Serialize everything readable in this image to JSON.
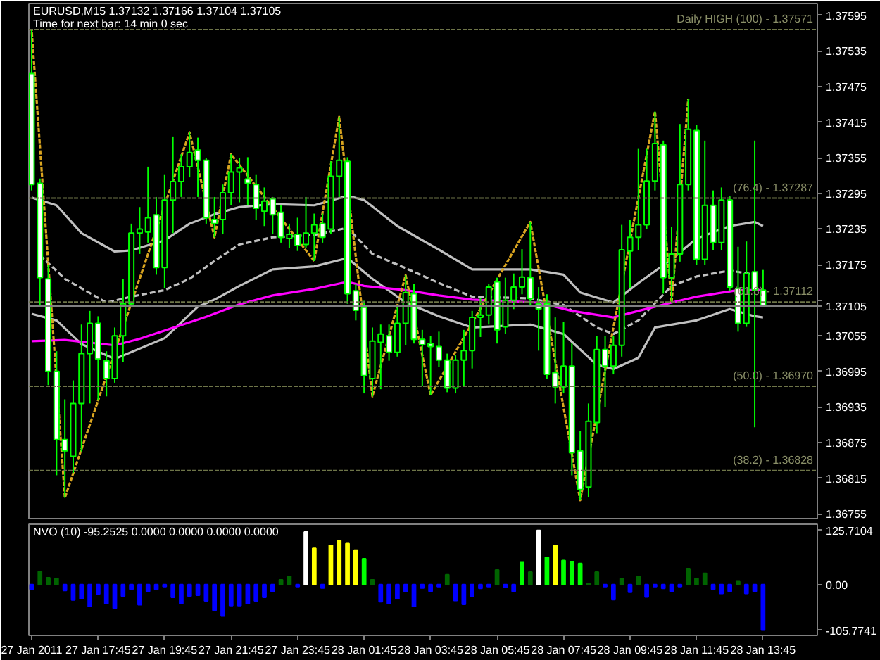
{
  "chart_data": [
    {
      "type": "candlestick",
      "title": "EURUSD,M15 1.37132 1.37166 1.37104 1.37105",
      "subtitle": "Time for next bar: 14 min 0 sec",
      "color": "#00ff00",
      "x": [
        "2011-01-27T15:45",
        "2011-01-27T16:00",
        "2011-01-27T16:15",
        "2011-01-27T16:30",
        "2011-01-27T16:45",
        "2011-01-27T17:00",
        "2011-01-27T17:15",
        "2011-01-27T17:30",
        "2011-01-27T17:45",
        "2011-01-27T18:00",
        "2011-01-27T18:15",
        "2011-01-27T18:30",
        "2011-01-27T18:45",
        "2011-01-27T19:00",
        "2011-01-27T19:15",
        "2011-01-27T19:30",
        "2011-01-27T19:45",
        "2011-01-27T20:00",
        "2011-01-27T20:15",
        "2011-01-27T20:30",
        "2011-01-27T20:45",
        "2011-01-27T21:00",
        "2011-01-27T21:15",
        "2011-01-27T21:30",
        "2011-01-27T21:45",
        "2011-01-27T22:00",
        "2011-01-27T22:15",
        "2011-01-27T22:30",
        "2011-01-27T22:45",
        "2011-01-27T23:00",
        "2011-01-27T23:15",
        "2011-01-27T23:30",
        "2011-01-27T23:45",
        "2011-01-28T00:00",
        "2011-01-28T00:15",
        "2011-01-28T00:30",
        "2011-01-28T00:45",
        "2011-01-28T01:00",
        "2011-01-28T01:15",
        "2011-01-28T01:30",
        "2011-01-28T01:45",
        "2011-01-28T02:00",
        "2011-01-28T02:15",
        "2011-01-28T02:30",
        "2011-01-28T02:45",
        "2011-01-28T03:00",
        "2011-01-28T03:15",
        "2011-01-28T03:30",
        "2011-01-28T03:45",
        "2011-01-28T04:00",
        "2011-01-28T04:15",
        "2011-01-28T04:30",
        "2011-01-28T04:45",
        "2011-01-28T05:00",
        "2011-01-28T05:15",
        "2011-01-28T05:30",
        "2011-01-28T05:45",
        "2011-01-28T06:00",
        "2011-01-28T06:15",
        "2011-01-28T06:30",
        "2011-01-28T06:45",
        "2011-01-28T07:00",
        "2011-01-28T07:15",
        "2011-01-28T07:30",
        "2011-01-28T07:45",
        "2011-01-28T08:00",
        "2011-01-28T08:15",
        "2011-01-28T08:30",
        "2011-01-28T08:45",
        "2011-01-28T09:00",
        "2011-01-28T09:15",
        "2011-01-28T09:30",
        "2011-01-28T09:45",
        "2011-01-28T10:00",
        "2011-01-28T10:15",
        "2011-01-28T10:30",
        "2011-01-28T10:45",
        "2011-01-28T11:00",
        "2011-01-28T11:15",
        "2011-01-28T11:30",
        "2011-01-28T11:45",
        "2011-01-28T12:00",
        "2011-01-28T12:15",
        "2011-01-28T12:30",
        "2011-01-28T12:45",
        "2011-01-28T13:00",
        "2011-01-28T13:15",
        "2011-01-28T13:30",
        "2011-01-28T13:45"
      ],
      "ohlc": [
        [
          1.37497,
          1.37571,
          1.373,
          1.3731
        ],
        [
          1.37312,
          1.3732,
          1.37104,
          1.37153
        ],
        [
          1.37151,
          1.37175,
          1.36972,
          1.36995
        ],
        [
          1.36995,
          1.37029,
          1.3682,
          1.3688
        ],
        [
          1.3688,
          1.36948,
          1.36782,
          1.36861
        ],
        [
          1.36852,
          1.3698,
          1.36824,
          1.36941
        ],
        [
          1.36941,
          1.37074,
          1.3686,
          1.37025
        ],
        [
          1.37025,
          1.37097,
          1.36941,
          1.37076
        ],
        [
          1.37076,
          1.37088,
          1.36946,
          1.37016
        ],
        [
          1.37013,
          1.37029,
          1.36953,
          1.36983
        ],
        [
          1.36983,
          1.37069,
          1.36976,
          1.37055
        ],
        [
          1.37055,
          1.37151,
          1.37011,
          1.37109
        ],
        [
          1.37109,
          1.37244,
          1.37107,
          1.37228
        ],
        [
          1.37228,
          1.37272,
          1.37193,
          1.37235
        ],
        [
          1.3723,
          1.3734,
          1.37212,
          1.37254
        ],
        [
          1.37259,
          1.37289,
          1.37158,
          1.3717
        ],
        [
          1.3717,
          1.37326,
          1.37135,
          1.37284
        ],
        [
          1.37284,
          1.37391,
          1.37228,
          1.37315
        ],
        [
          1.37315,
          1.37361,
          1.37289,
          1.3734
        ],
        [
          1.3734,
          1.37398,
          1.37322,
          1.37364
        ],
        [
          1.37368,
          1.37389,
          1.37289,
          1.37351
        ],
        [
          1.37351,
          1.37355,
          1.37244,
          1.37254
        ],
        [
          1.37251,
          1.37289,
          1.37221,
          1.37244
        ],
        [
          1.37251,
          1.3731,
          1.37226,
          1.37296
        ],
        [
          1.37296,
          1.37361,
          1.37275,
          1.37331
        ],
        [
          1.37331,
          1.37355,
          1.3728,
          1.37338
        ],
        [
          1.37319,
          1.37356,
          1.37275,
          1.37312
        ],
        [
          1.3731,
          1.37326,
          1.37251,
          1.3727
        ],
        [
          1.37265,
          1.37305,
          1.3724,
          1.37282
        ],
        [
          1.37286,
          1.37289,
          1.37226,
          1.37259
        ],
        [
          1.37263,
          1.37275,
          1.37212,
          1.37221
        ],
        [
          1.37219,
          1.37244,
          1.37203,
          1.37226
        ],
        [
          1.37226,
          1.37254,
          1.37198,
          1.37207
        ],
        [
          1.37209,
          1.37289,
          1.37203,
          1.37228
        ],
        [
          1.37228,
          1.37261,
          1.37181,
          1.37242
        ],
        [
          1.37244,
          1.37261,
          1.37212,
          1.37221
        ],
        [
          1.37235,
          1.37349,
          1.37226,
          1.37324
        ],
        [
          1.37324,
          1.37424,
          1.37289,
          1.37351
        ],
        [
          1.37349,
          1.37356,
          1.37109,
          1.37126
        ],
        [
          1.37131,
          1.37143,
          1.37081,
          1.37098
        ],
        [
          1.37103,
          1.37114,
          1.36958,
          1.36988
        ],
        [
          1.36983,
          1.37069,
          1.36953,
          1.37046
        ],
        [
          1.37044,
          1.37074,
          1.36965,
          1.37058
        ],
        [
          1.37055,
          1.37074,
          1.37013,
          1.37027
        ],
        [
          1.37027,
          1.37107,
          1.3702,
          1.37076
        ],
        [
          1.37076,
          1.37157,
          1.37039,
          1.37128
        ],
        [
          1.37126,
          1.37143,
          1.37042,
          1.37049
        ],
        [
          1.37049,
          1.37065,
          1.36971,
          1.3704
        ],
        [
          1.37042,
          1.37055,
          1.36955,
          1.37037
        ],
        [
          1.37037,
          1.37062,
          1.37002,
          1.37014
        ],
        [
          1.37014,
          1.37025,
          1.3696,
          1.36967
        ],
        [
          1.36967,
          1.37023,
          1.36958,
          1.37014
        ],
        [
          1.37014,
          1.37065,
          1.36971,
          1.3703
        ],
        [
          1.3703,
          1.37097,
          1.37,
          1.37086
        ],
        [
          1.37086,
          1.37118,
          1.37053,
          1.3709
        ],
        [
          1.3709,
          1.37143,
          1.37074,
          1.37137
        ],
        [
          1.37146,
          1.37153,
          1.37042,
          1.37065
        ],
        [
          1.3707,
          1.37153,
          1.37058,
          1.37115
        ],
        [
          1.37115,
          1.3716,
          1.371,
          1.37137
        ],
        [
          1.37137,
          1.37201,
          1.37125,
          1.37154
        ],
        [
          1.37153,
          1.37247,
          1.37104,
          1.37118
        ],
        [
          1.37109,
          1.37137,
          1.3703,
          1.371
        ],
        [
          1.37109,
          1.37125,
          1.36983,
          1.3699
        ],
        [
          1.36993,
          1.37086,
          1.36941,
          1.36969
        ],
        [
          1.36969,
          1.37079,
          1.36958,
          1.37004
        ],
        [
          1.37004,
          1.37042,
          1.3682,
          1.36858
        ],
        [
          1.36861,
          1.36895,
          1.36778,
          1.36796
        ],
        [
          1.368,
          1.36941,
          1.36783,
          1.36911
        ],
        [
          1.36909,
          1.37055,
          1.3689,
          1.37032
        ],
        [
          1.37032,
          1.37055,
          1.36935,
          1.37004
        ],
        [
          1.37004,
          1.37055,
          1.3699,
          1.37039
        ],
        [
          1.37039,
          1.37242,
          1.3702,
          1.372
        ],
        [
          1.37198,
          1.37251,
          1.37135,
          1.37221
        ],
        [
          1.37221,
          1.3737,
          1.372,
          1.37242
        ],
        [
          1.37242,
          1.3737,
          1.37235,
          1.37316
        ],
        [
          1.37316,
          1.37433,
          1.373,
          1.37379
        ],
        [
          1.37377,
          1.37384,
          1.37126,
          1.37153
        ],
        [
          1.37153,
          1.37239,
          1.37111,
          1.37193
        ],
        [
          1.37193,
          1.37412,
          1.3718,
          1.3731
        ],
        [
          1.3731,
          1.37454,
          1.373,
          1.37403
        ],
        [
          1.37401,
          1.3741,
          1.37175,
          1.37184
        ],
        [
          1.37184,
          1.37384,
          1.37175,
          1.37275
        ],
        [
          1.37275,
          1.373,
          1.372,
          1.37212
        ],
        [
          1.37212,
          1.37305,
          1.372,
          1.37284
        ],
        [
          1.37284,
          1.3729,
          1.3713,
          1.37137
        ],
        [
          1.37135,
          1.37205,
          1.37062,
          1.37076
        ],
        [
          1.37076,
          1.37214,
          1.3707,
          1.3716
        ],
        [
          1.37163,
          1.37384,
          1.36901,
          1.37132
        ],
        [
          1.37132,
          1.37166,
          1.37104,
          1.37105
        ]
      ],
      "series": [
        {
          "type": "line",
          "color": "#c0c0c0",
          "x": [
            "2011-01-27T15:45",
            "2011-01-27T16:30",
            "2011-01-27T17:15",
            "2011-01-27T18:15",
            "2011-01-27T18:45",
            "2011-01-27T19:45",
            "2011-01-27T20:30",
            "2011-01-27T21:15",
            "2011-01-27T22:00",
            "2011-01-27T23:00",
            "2011-01-28T00:15",
            "2011-01-28T01:15",
            "2011-01-28T01:45",
            "2011-01-28T02:45",
            "2011-01-28T04:00",
            "2011-01-28T05:00",
            "2011-01-28T06:45",
            "2011-01-28T07:45",
            "2011-01-28T08:15",
            "2011-01-28T09:15",
            "2011-01-28T10:00",
            "2011-01-28T11:00",
            "2011-01-28T11:45",
            "2011-01-28T12:45",
            "2011-01-28T13:30",
            "2011-01-28T13:45"
          ],
          "values": [
            1.37288,
            1.37275,
            1.37228,
            1.37197,
            1.37199,
            1.37216,
            1.37244,
            1.3726,
            1.37272,
            1.37277,
            1.37275,
            1.37291,
            1.37284,
            1.3724,
            1.372,
            1.37167,
            1.37167,
            1.37158,
            1.37128,
            1.37111,
            1.37144,
            1.37184,
            1.37219,
            1.3724,
            1.37247,
            1.3724
          ]
        },
        {
          "type": "line",
          "color": "#c0c0c0",
          "line_style": "dashed",
          "x": [
            "2011-01-27T16:00",
            "2011-01-27T16:45",
            "2011-01-27T18:00",
            "2011-01-27T18:45",
            "2011-01-27T19:45",
            "2011-01-27T20:30",
            "2011-01-27T21:15",
            "2011-01-27T22:00",
            "2011-01-27T23:00",
            "2011-01-28T00:15",
            "2011-01-28T01:15",
            "2011-01-28T02:00",
            "2011-01-28T03:00",
            "2011-01-28T04:00",
            "2011-01-28T05:00",
            "2011-01-28T06:45",
            "2011-01-28T07:45",
            "2011-01-28T08:45",
            "2011-01-28T09:15",
            "2011-01-28T10:00",
            "2011-01-28T11:00",
            "2011-01-28T11:45",
            "2011-01-28T12:45",
            "2011-01-28T13:30"
          ],
          "values": [
            1.37191,
            1.37151,
            1.37111,
            1.37121,
            1.37132,
            1.37151,
            1.37181,
            1.37209,
            1.37221,
            1.37225,
            1.37237,
            1.37193,
            1.37169,
            1.37144,
            1.37121,
            1.37118,
            1.37107,
            1.37069,
            1.37058,
            1.37081,
            1.37139,
            1.37155,
            1.37165,
            1.37158
          ]
        },
        {
          "type": "line",
          "color": "#c0c0c0",
          "x": [
            "2011-01-27T15:45",
            "2011-01-27T16:30",
            "2011-01-27T17:15",
            "2011-01-27T18:15",
            "2011-01-27T19:45",
            "2011-01-27T20:45",
            "2011-01-27T21:15",
            "2011-01-27T22:00",
            "2011-01-27T23:00",
            "2011-01-28T00:15",
            "2011-01-28T01:15",
            "2011-01-28T02:00",
            "2011-01-28T03:00",
            "2011-01-28T04:00",
            "2011-01-28T05:00",
            "2011-01-28T06:45",
            "2011-01-28T07:45",
            "2011-01-28T08:45",
            "2011-01-28T09:15",
            "2011-01-28T10:00",
            "2011-01-28T10:30",
            "2011-01-28T11:45",
            "2011-01-28T12:45",
            "2011-01-28T13:30",
            "2011-01-28T13:45"
          ],
          "values": [
            1.37092,
            1.37081,
            1.37041,
            1.37016,
            1.37051,
            1.37104,
            1.37116,
            1.37139,
            1.37167,
            1.37172,
            1.37186,
            1.37151,
            1.37111,
            1.37088,
            1.37069,
            1.37074,
            1.37058,
            1.37006,
            1.36999,
            1.37018,
            1.37069,
            1.37081,
            1.371,
            1.37088,
            1.37086
          ]
        },
        {
          "type": "line",
          "color": "#ff00ff",
          "x": [
            "2011-01-27T15:45",
            "2011-01-27T16:45",
            "2011-01-27T18:15",
            "2011-01-27T19:00",
            "2011-01-27T20:15",
            "2011-01-27T21:00",
            "2011-01-27T22:00",
            "2011-01-27T23:00",
            "2011-01-28T00:15",
            "2011-01-28T01:15",
            "2011-01-28T01:45",
            "2011-01-28T03:00",
            "2011-01-28T04:00",
            "2011-01-28T05:00",
            "2011-01-28T07:00",
            "2011-01-28T08:00",
            "2011-01-28T09:15",
            "2011-01-28T10:00",
            "2011-01-28T11:00",
            "2011-01-28T11:45",
            "2011-01-28T13:00",
            "2011-01-28T13:45"
          ],
          "values": [
            1.37046,
            1.37048,
            1.37039,
            1.3705,
            1.37073,
            1.37087,
            1.37108,
            1.37123,
            1.37134,
            1.37146,
            1.37139,
            1.37132,
            1.37123,
            1.37116,
            1.37111,
            1.37097,
            1.37086,
            1.37097,
            1.37111,
            1.37121,
            1.37132,
            1.37132
          ]
        },
        {
          "type": "line",
          "color": "#daa520",
          "line_style": "dotted",
          "x": [
            "2011-01-27T15:45",
            "2011-01-27T16:45",
            "2011-01-27T20:30",
            "2011-01-27T21:15",
            "2011-01-27T21:45",
            "2011-01-28T00:15",
            "2011-01-28T01:00",
            "2011-01-28T02:00",
            "2011-01-28T03:00",
            "2011-01-28T03:45",
            "2011-01-28T06:45",
            "2011-01-28T08:15",
            "2011-01-28T10:30",
            "2011-01-28T11:00",
            "2011-01-28T11:30"
          ],
          "values": [
            1.37571,
            1.36782,
            1.37398,
            1.37221,
            1.37361,
            1.37181,
            1.37424,
            1.36953,
            1.37157,
            1.36955,
            1.37247,
            1.36778,
            1.37433,
            1.37111,
            1.37454
          ]
        }
      ],
      "ref_lines": [
        {
          "axis": "y",
          "value": 1.37571,
          "color": "#6e7548",
          "line_style": "dotted"
        },
        {
          "axis": "y",
          "value": 1.37287,
          "color": "#6e7548",
          "line_style": "dotted"
        },
        {
          "axis": "y",
          "value": 1.37112,
          "color": "#6e7548",
          "line_style": "dotted"
        },
        {
          "axis": "y",
          "value": 1.3697,
          "color": "#6e7548",
          "line_style": "dotted"
        },
        {
          "axis": "y",
          "value": 1.36828,
          "color": "#6e7548",
          "line_style": "dotted"
        },
        {
          "axis": "y",
          "value": 1.37105,
          "label": "1.37105",
          "color": "#808080",
          "line_style": "solid"
        }
      ],
      "annotations": [
        {
          "text": "Daily HIGH (100) - 1.37571",
          "y": 1.37571
        },
        {
          "text": "(76.4) - 1.37287",
          "y": 1.37287
        },
        {
          "text": "(61.8) - 1.37112",
          "y": 1.37112
        },
        {
          "text": "(50.0) - 1.36970",
          "y": 1.3697
        },
        {
          "text": "(38.2) - 1.36828",
          "y": 1.36828
        }
      ],
      "xlim": [
        "2011-01-27T15:40",
        "2011-01-28T15:23"
      ],
      "ylim": [
        1.36747,
        1.37615
      ],
      "yticks": [
        1.37595,
        1.37535,
        1.37475,
        1.37415,
        1.37355,
        1.37295,
        1.37235,
        1.37175,
        {
          "value": 1.37115,
          "label": null
        },
        1.37055,
        1.36995,
        1.36935,
        1.36875,
        1.36815,
        1.36755
      ],
      "tick_labels": "y"
    },
    {
      "type": "bar",
      "title": "NVO (10) -95.2525 0.0000 0.0000 0.0000 0.0000",
      "x": [
        "2011-01-27T15:45",
        "2011-01-27T16:00",
        "2011-01-27T16:15",
        "2011-01-27T16:30",
        "2011-01-27T16:45",
        "2011-01-27T17:00",
        "2011-01-27T17:15",
        "2011-01-27T17:30",
        "2011-01-27T17:45",
        "2011-01-27T18:00",
        "2011-01-27T18:15",
        "2011-01-27T18:30",
        "2011-01-27T18:45",
        "2011-01-27T19:00",
        "2011-01-27T19:15",
        "2011-01-27T19:30",
        "2011-01-27T19:45",
        "2011-01-27T20:00",
        "2011-01-27T20:15",
        "2011-01-27T20:30",
        "2011-01-27T20:45",
        "2011-01-27T21:00",
        "2011-01-27T21:15",
        "2011-01-27T21:30",
        "2011-01-27T21:45",
        "2011-01-27T22:00",
        "2011-01-27T22:15",
        "2011-01-27T22:30",
        "2011-01-27T22:45",
        "2011-01-27T23:00",
        "2011-01-27T23:15",
        "2011-01-27T23:30",
        "2011-01-27T23:45",
        "2011-01-28T00:00",
        "2011-01-28T00:15",
        "2011-01-28T00:30",
        "2011-01-28T00:45",
        "2011-01-28T01:00",
        "2011-01-28T01:15",
        "2011-01-28T01:30",
        "2011-01-28T01:45",
        "2011-01-28T02:00",
        "2011-01-28T02:15",
        "2011-01-28T02:30",
        "2011-01-28T02:45",
        "2011-01-28T03:00",
        "2011-01-28T03:15",
        "2011-01-28T03:30",
        "2011-01-28T03:45",
        "2011-01-28T04:00",
        "2011-01-28T04:15",
        "2011-01-28T04:30",
        "2011-01-28T04:45",
        "2011-01-28T05:00",
        "2011-01-28T05:15",
        "2011-01-28T05:30",
        "2011-01-28T05:45",
        "2011-01-28T06:00",
        "2011-01-28T06:15",
        "2011-01-28T06:30",
        "2011-01-28T06:45",
        "2011-01-28T07:00",
        "2011-01-28T07:15",
        "2011-01-28T07:30",
        "2011-01-28T07:45",
        "2011-01-28T08:00",
        "2011-01-28T08:15",
        "2011-01-28T08:30",
        "2011-01-28T08:45",
        "2011-01-28T09:00",
        "2011-01-28T09:15",
        "2011-01-28T09:30",
        "2011-01-28T09:45",
        "2011-01-28T10:00",
        "2011-01-28T10:15",
        "2011-01-28T10:30",
        "2011-01-28T10:45",
        "2011-01-28T11:00",
        "2011-01-28T11:15",
        "2011-01-28T11:30",
        "2011-01-28T11:45",
        "2011-01-28T12:00",
        "2011-01-28T12:15",
        "2011-01-28T12:30",
        "2011-01-28T12:45",
        "2011-01-28T13:00",
        "2011-01-28T13:15",
        "2011-01-28T13:30",
        "2011-01-28T13:45"
      ],
      "values": [
        -11,
        30,
        16,
        14,
        -14,
        -36,
        -33,
        -51,
        -22,
        -44,
        -55,
        -27,
        -11,
        -47,
        -16,
        -11,
        -5,
        -30,
        -44,
        -27,
        -25,
        -38,
        -60,
        -73,
        -49,
        -49,
        -44,
        -38,
        -30,
        -16,
        11,
        19,
        -5,
        122,
        84,
        -8,
        91,
        102,
        95,
        80,
        60,
        11,
        -40,
        -44,
        -33,
        -16,
        -51,
        -8,
        -16,
        -5,
        23,
        -37,
        -46,
        -27,
        -9,
        -5,
        34,
        -7,
        -16,
        51,
        29,
        125.7104,
        63,
        91,
        56,
        53,
        49,
        2,
        29,
        -5,
        -35,
        14,
        -18,
        19,
        -29,
        -5,
        -9,
        -16,
        -5,
        37,
        14,
        26,
        -11,
        -21,
        -16,
        7,
        -21,
        -16,
        -105.7741
      ],
      "colors": [
        "#0000ff",
        "#006400",
        "#006400",
        "#006400",
        "#0000ff",
        "#0000ff",
        "#0000ff",
        "#0000ff",
        "#0000ff",
        "#0000ff",
        "#0000ff",
        "#0000ff",
        "#0000ff",
        "#0000ff",
        "#0000ff",
        "#0000ff",
        "#0000ff",
        "#0000ff",
        "#0000ff",
        "#0000ff",
        "#0000ff",
        "#0000ff",
        "#0000ff",
        "#0000ff",
        "#0000ff",
        "#0000ff",
        "#0000ff",
        "#0000ff",
        "#0000ff",
        "#0000ff",
        "#006400",
        "#006400",
        "#0000ff",
        "#ffffff",
        "#ffff00",
        "#0000ff",
        "#ffff00",
        "#ffff00",
        "#ffff00",
        "#ffff00",
        "#00ff00",
        "#006400",
        "#0000ff",
        "#0000ff",
        "#0000ff",
        "#0000ff",
        "#0000ff",
        "#0000ff",
        "#0000ff",
        "#0000ff",
        "#006400",
        "#0000ff",
        "#0000ff",
        "#0000ff",
        "#0000ff",
        "#0000ff",
        "#006400",
        "#0000ff",
        "#0000ff",
        "#00ff00",
        "#006400",
        "#ffffff",
        "#00ff00",
        "#ffff00",
        "#00ff00",
        "#00ff00",
        "#00ff00",
        "#006400",
        "#006400",
        "#0000ff",
        "#0000ff",
        "#006400",
        "#0000ff",
        "#006400",
        "#0000ff",
        "#0000ff",
        "#0000ff",
        "#0000ff",
        "#0000ff",
        "#006400",
        "#006400",
        "#006400",
        "#0000ff",
        "#0000ff",
        "#0000ff",
        "#006400",
        "#0000ff",
        "#0000ff",
        "#0000ff"
      ],
      "xlim": [
        "2011-01-27T15:40",
        "2011-01-28T15:23"
      ],
      "ylim": [
        -118,
        140
      ],
      "xticks": [
        {
          "value": "2011-01-27T15:45",
          "label": "27 Jan 2011"
        },
        {
          "value": "2011-01-27T17:45",
          "label": "27 Jan 17:45"
        },
        {
          "value": "2011-01-27T19:45",
          "label": "27 Jan 19:45"
        },
        {
          "value": "2011-01-27T21:45",
          "label": "27 Jan 21:45"
        },
        {
          "value": "2011-01-27T23:45",
          "label": "27 Jan 23:45"
        },
        {
          "value": "2011-01-28T01:45",
          "label": "28 Jan 01:45"
        },
        {
          "value": "2011-01-28T03:45",
          "label": "28 Jan 03:45"
        },
        {
          "value": "2011-01-28T05:45",
          "label": "28 Jan 05:45"
        },
        {
          "value": "2011-01-28T07:45",
          "label": "28 Jan 07:45"
        },
        {
          "value": "2011-01-28T09:45",
          "label": "28 Jan 09:45"
        },
        {
          "value": "2011-01-28T11:45",
          "label": "28 Jan 11:45"
        },
        {
          "value": "2011-01-28T13:45",
          "label": "28 Jan 13:45"
        }
      ],
      "yticks": [
        125.7104,
        {
          "value": 0,
          "label": "0.00"
        },
        -105.7741
      ]
    }
  ]
}
